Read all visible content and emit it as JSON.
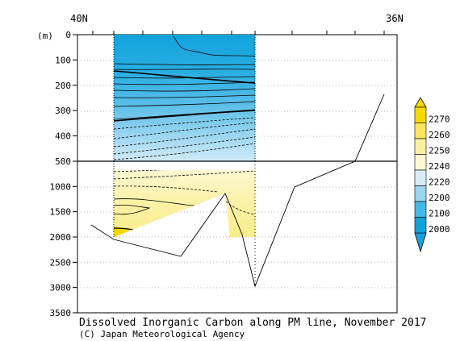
{
  "chart_data": {
    "type": "heatmap",
    "title": "Dissolved Inorganic Carbon along PM line, November 2017",
    "credit": "(C) Japan Meteorological Agency",
    "x_top_labels": [
      "40N",
      "36N"
    ],
    "y_unit": "(m)",
    "y_upper_ticks": [
      "0",
      "100",
      "200",
      "300",
      "400",
      "500"
    ],
    "y_lower_ticks": [
      "1000",
      "1500",
      "2000",
      "2500",
      "3000",
      "3500"
    ],
    "y_upper_range": [
      0,
      500
    ],
    "y_lower_range": [
      500,
      3500
    ],
    "colorbar": {
      "levels": [
        "2270",
        "2260",
        "2250",
        "2240",
        "2220",
        "2200",
        "2100",
        "2000"
      ],
      "colors": [
        "#f7d800",
        "#f9e65a",
        "#fbf09f",
        "#fdf8d2",
        "#d6ecf7",
        "#9ad4ee",
        "#46b8e6",
        "#10a2db"
      ]
    },
    "section_depth_max": 2000,
    "bottom_profile_depths": [
      1750,
      2050,
      2350,
      1150,
      2950,
      1000,
      500,
      230
    ]
  }
}
